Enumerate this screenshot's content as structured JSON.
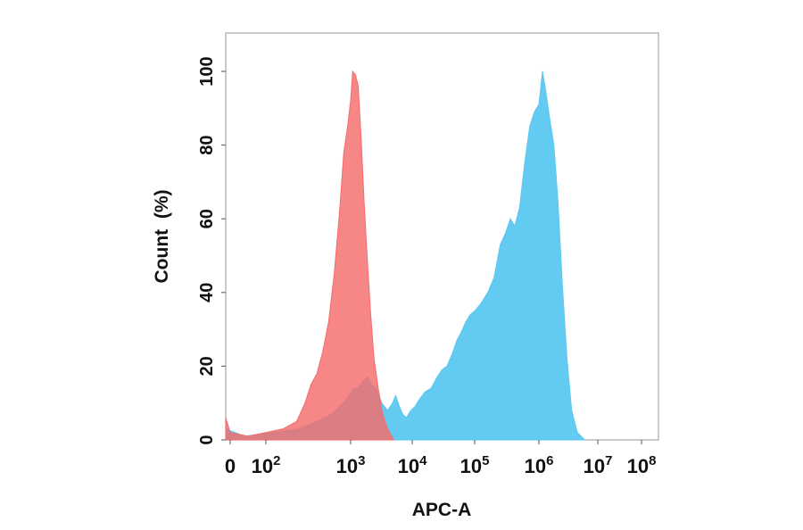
{
  "chart_data": {
    "type": "area",
    "title": "",
    "xlabel": "APC-A",
    "ylabel": "Count  (%)",
    "x_scale": "biexponential",
    "xlim": [
      -60,
      100000000
    ],
    "ylim": [
      0,
      110
    ],
    "x_ticks": [
      {
        "value": 0,
        "base": "0",
        "exp": ""
      },
      {
        "value": 100,
        "base": "10",
        "exp": "2"
      },
      {
        "value": 1000,
        "base": "10",
        "exp": "3"
      },
      {
        "value": 10000,
        "base": "10",
        "exp": "4"
      },
      {
        "value": 100000,
        "base": "10",
        "exp": "5"
      },
      {
        "value": 1000000,
        "base": "10",
        "exp": "6"
      },
      {
        "value": 10000000,
        "base": "10",
        "exp": "7"
      },
      {
        "value": 100000000,
        "base": "10",
        "exp": "8"
      }
    ],
    "y_ticks": [
      "0",
      "20",
      "40",
      "60",
      "80",
      "100"
    ],
    "grid": false,
    "legend": false,
    "series": [
      {
        "color": "#5bc8f0",
        "points": [
          [
            -60,
            3
          ],
          [
            40,
            1
          ],
          [
            120,
            2
          ],
          [
            250,
            3
          ],
          [
            400,
            5
          ],
          [
            600,
            7
          ],
          [
            900,
            11
          ],
          [
            1100,
            14
          ],
          [
            1300,
            14
          ],
          [
            1600,
            16
          ],
          [
            1900,
            17
          ],
          [
            2200,
            15
          ],
          [
            2600,
            14
          ],
          [
            3200,
            10
          ],
          [
            4000,
            8
          ],
          [
            4800,
            10
          ],
          [
            5400,
            12
          ],
          [
            6200,
            9
          ],
          [
            7000,
            7
          ],
          [
            8000,
            6
          ],
          [
            9500,
            8
          ],
          [
            11000,
            9
          ],
          [
            13000,
            11
          ],
          [
            16000,
            13
          ],
          [
            20000,
            14
          ],
          [
            25000,
            17
          ],
          [
            30000,
            19
          ],
          [
            36000,
            20
          ],
          [
            43000,
            23
          ],
          [
            52000,
            27
          ],
          [
            60000,
            29
          ],
          [
            72000,
            32
          ],
          [
            85000,
            34
          ],
          [
            100000,
            35
          ],
          [
            125000,
            37
          ],
          [
            160000,
            40
          ],
          [
            200000,
            44
          ],
          [
            250000,
            53
          ],
          [
            300000,
            56
          ],
          [
            360000,
            60
          ],
          [
            420000,
            58
          ],
          [
            500000,
            63
          ],
          [
            600000,
            75
          ],
          [
            720000,
            85
          ],
          [
            850000,
            89
          ],
          [
            1000000,
            91
          ],
          [
            1150000,
            100
          ],
          [
            1300000,
            95
          ],
          [
            1500000,
            88
          ],
          [
            1800000,
            80
          ],
          [
            2100000,
            65
          ],
          [
            2500000,
            42
          ],
          [
            3000000,
            22
          ],
          [
            3600000,
            8
          ],
          [
            4500000,
            2
          ],
          [
            6000000,
            0
          ]
        ]
      },
      {
        "color": "#f56b6b",
        "points": [
          [
            -60,
            6
          ],
          [
            0,
            2
          ],
          [
            50,
            1
          ],
          [
            100,
            2
          ],
          [
            160,
            3
          ],
          [
            230,
            5
          ],
          [
            290,
            10
          ],
          [
            340,
            15
          ],
          [
            400,
            18
          ],
          [
            470,
            24
          ],
          [
            550,
            32
          ],
          [
            640,
            45
          ],
          [
            740,
            62
          ],
          [
            830,
            78
          ],
          [
            920,
            85
          ],
          [
            1000,
            92
          ],
          [
            1080,
            100
          ],
          [
            1200,
            99
          ],
          [
            1330,
            96
          ],
          [
            1480,
            82
          ],
          [
            1650,
            65
          ],
          [
            1850,
            50
          ],
          [
            2100,
            35
          ],
          [
            2400,
            22
          ],
          [
            2800,
            14
          ],
          [
            3300,
            7
          ],
          [
            4000,
            3
          ],
          [
            5000,
            0
          ]
        ]
      }
    ]
  }
}
